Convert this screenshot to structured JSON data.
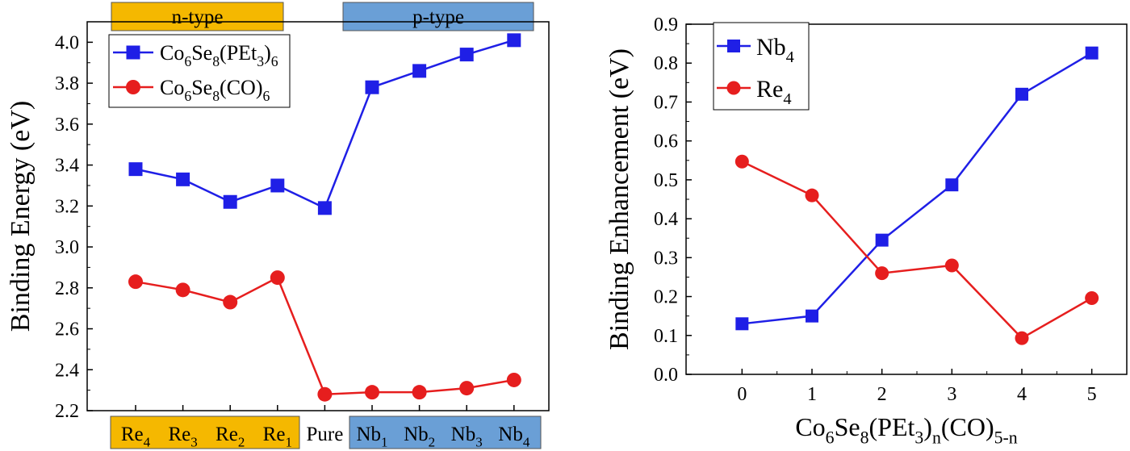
{
  "colors": {
    "blue": "#1f1fe6",
    "red": "#e61e1e",
    "ntype_fill": "#f5b800",
    "ptype_fill": "#6a9fd6",
    "ntype_label_fill": "#f5b800",
    "ptype_label_fill": "#6a9fd6"
  },
  "chart_data": [
    {
      "type": "line",
      "ylabel": "Binding Energy (eV)",
      "xlabel": "",
      "ylim": [
        2.2,
        4.1
      ],
      "yticks": [
        "2.2",
        "2.4",
        "2.6",
        "2.8",
        "3.0",
        "3.2",
        "3.4",
        "3.6",
        "3.8",
        "4.0"
      ],
      "categories": [
        {
          "base": "Re",
          "sub": "4"
        },
        {
          "base": "Re",
          "sub": "3"
        },
        {
          "base": "Re",
          "sub": "2"
        },
        {
          "base": "Re",
          "sub": "1"
        },
        {
          "base": "Pure",
          "sub": ""
        },
        {
          "base": "Nb",
          "sub": "1"
        },
        {
          "base": "Nb",
          "sub": "2"
        },
        {
          "base": "Nb",
          "sub": "3"
        },
        {
          "base": "Nb",
          "sub": "4"
        }
      ],
      "regions": [
        {
          "label": "n-type",
          "categories": [
            0,
            3
          ],
          "color": "#f5b800"
        },
        {
          "label": "p-type",
          "categories": [
            5,
            8
          ],
          "color": "#6a9fd6"
        }
      ],
      "legend_position": "top-left",
      "series": [
        {
          "name": "Co6Se8(PEt3)6",
          "marker": "square",
          "color": "#1f1fe6",
          "values": [
            3.38,
            3.33,
            3.22,
            3.3,
            3.19,
            3.78,
            3.86,
            3.94,
            4.01
          ]
        },
        {
          "name": "Co6Se8(CO)6",
          "marker": "circle",
          "color": "#e61e1e",
          "values": [
            2.83,
            2.79,
            2.73,
            2.85,
            2.28,
            2.29,
            2.29,
            2.31,
            2.35
          ]
        }
      ]
    },
    {
      "type": "line",
      "ylabel": "Binding Enhancement (eV)",
      "xlabel": "Co6Se8(PEt3)n(CO)5-n",
      "ylim": [
        0.0,
        0.9
      ],
      "xlim": [
        -0.8,
        5.5
      ],
      "yticks": [
        "0.0",
        "0.1",
        "0.2",
        "0.3",
        "0.4",
        "0.5",
        "0.6",
        "0.7",
        "0.8",
        "0.9"
      ],
      "xticks": [
        "0",
        "1",
        "2",
        "3",
        "4",
        "5"
      ],
      "legend_position": "top-left",
      "series": [
        {
          "name": "Nb4",
          "marker": "square",
          "color": "#1f1fe6",
          "x": [
            0,
            1,
            2,
            3,
            4,
            5
          ],
          "values": [
            0.13,
            0.15,
            0.345,
            0.487,
            0.72,
            0.826
          ]
        },
        {
          "name": "Re4",
          "marker": "circle",
          "color": "#e61e1e",
          "x": [
            0,
            1,
            2,
            3,
            4,
            5
          ],
          "values": [
            0.547,
            0.46,
            0.26,
            0.28,
            0.093,
            0.196
          ]
        }
      ]
    }
  ]
}
